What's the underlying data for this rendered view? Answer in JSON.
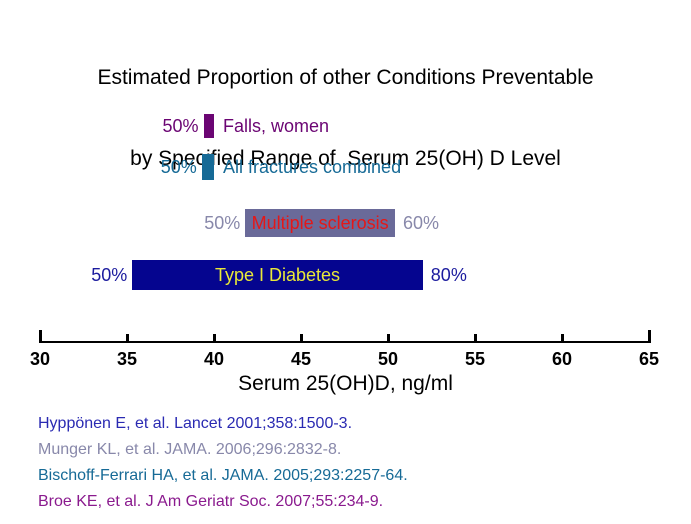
{
  "title": {
    "line1": "Estimated Proportion of other Conditions Preventable",
    "line2": "by Specified Range of  Serum 25(OH) D Level"
  },
  "axis": {
    "label": "Serum 25(OH)D, ng/ml",
    "ticks": [
      "30",
      "35",
      "40",
      "45",
      "50",
      "55",
      "60",
      "65"
    ]
  },
  "chart_data": {
    "type": "bar",
    "orientation": "horizontal",
    "title": "Estimated Proportion of other Conditions Preventable by Specified Range of Serum 25(OH) D Level",
    "xlabel": "Serum 25(OH)D, ng/ml",
    "xlim": [
      30,
      65
    ],
    "xtick_values": [
      30,
      35,
      40,
      45,
      50,
      55,
      60,
      65
    ],
    "grid": false,
    "bars": [
      {
        "label": "Falls, women",
        "serum_range_ng_ml": [
          39.4,
          40.0
        ],
        "left_pct": "50%",
        "right_pct": "",
        "bar_color": "#6B0573",
        "label_color": "#6B0573",
        "pct_color": "#6B0573",
        "label_position": "right"
      },
      {
        "label": "All fractures combined",
        "serum_range_ng_ml": [
          39.3,
          40.0
        ],
        "left_pct": "50%",
        "right_pct": "",
        "bar_color": "#166A96",
        "label_color": "#166A96",
        "pct_color": "#166A96",
        "label_position": "right"
      },
      {
        "label": "Multiple sclerosis",
        "serum_range_ng_ml": [
          41.8,
          50.4
        ],
        "left_pct": "50%",
        "right_pct": "60%",
        "bar_color": "#6A6A99",
        "label_color": "#E51717",
        "pct_color": "#8888AA",
        "label_position": "inside"
      },
      {
        "label": "Type I Diabetes",
        "serum_range_ng_ml": [
          35.3,
          52.0
        ],
        "left_pct": "50%",
        "right_pct": "80%",
        "bar_color": "#05058F",
        "label_color": "#E8E838",
        "pct_color": "#1B1B9E",
        "label_position": "inside"
      }
    ]
  },
  "citations": [
    {
      "text": "Hyppönen E, et al. Lancet 2001;358:1500-3.",
      "color": "#2A2AB2"
    },
    {
      "text": "Munger KL, et al. JAMA. 2006;296:2832-8.",
      "color": "#8888AA"
    },
    {
      "text": "Bischoff-Ferrari HA, et al. JAMA. 2005;293:2257-64.",
      "color": "#166A96"
    },
    {
      "text": "Broe KE, et al. J Am Geriatr Soc. 2007;55:234-9.",
      "color": "#8A1A8E"
    }
  ]
}
